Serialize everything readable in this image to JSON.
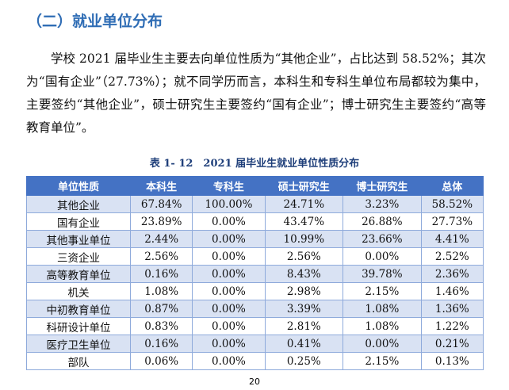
{
  "heading": "（二）就业单位分布",
  "paragraph": "学校 2021 届毕业生主要去向单位性质为“其他企业”，占比达到 58.52%；其次为“国有企业”（27.73%）；就不同学历而言，本科生和专科生单位布局都较为集中，主要签约“其他企业”，硕士研究生主要签约“国有企业”；博士研究生主要签约“高等教育单位”。",
  "table": {
    "caption": "表 1- 12　2021 届毕业生就业单位性质分布",
    "headers": [
      "单位性质",
      "本科生",
      "专科生",
      "硕士研究生",
      "博士研究生",
      "总体"
    ],
    "rows": [
      [
        "其他企业",
        "67.84%",
        "100.00%",
        "24.71%",
        "3.23%",
        "58.52%"
      ],
      [
        "国有企业",
        "23.89%",
        "0.00%",
        "43.47%",
        "26.88%",
        "27.73%"
      ],
      [
        "其他事业单位",
        "2.44%",
        "0.00%",
        "10.99%",
        "23.66%",
        "4.41%"
      ],
      [
        "三资企业",
        "2.56%",
        "0.00%",
        "2.56%",
        "0.00%",
        "2.52%"
      ],
      [
        "高等教育单位",
        "0.16%",
        "0.00%",
        "8.43%",
        "39.78%",
        "2.36%"
      ],
      [
        "机关",
        "1.08%",
        "0.00%",
        "2.98%",
        "2.15%",
        "1.46%"
      ],
      [
        "中初教育单位",
        "0.87%",
        "0.00%",
        "3.39%",
        "1.08%",
        "1.36%"
      ],
      [
        "科研设计单位",
        "0.83%",
        "0.00%",
        "2.81%",
        "1.08%",
        "1.22%"
      ],
      [
        "医疗卫生单位",
        "0.16%",
        "0.00%",
        "0.41%",
        "0.00%",
        "0.21%"
      ],
      [
        "部队",
        "0.06%",
        "0.00%",
        "0.25%",
        "2.15%",
        "0.13%"
      ]
    ]
  },
  "page_number": "20"
}
